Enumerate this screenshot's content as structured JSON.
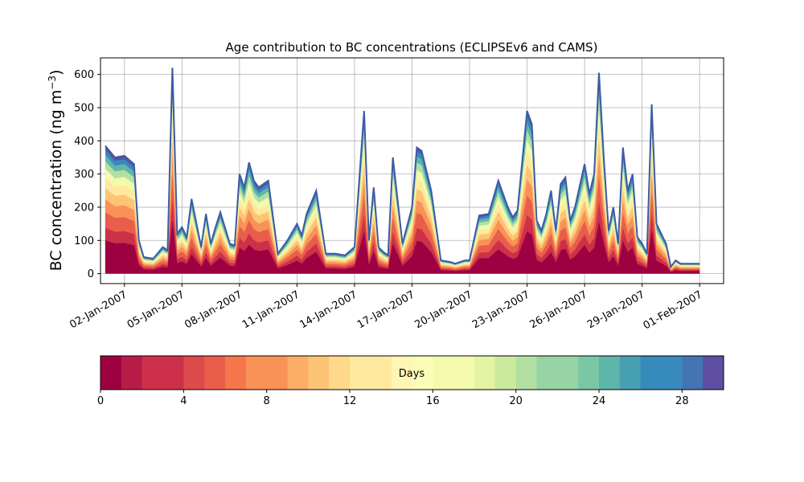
{
  "chart_data": [
    {
      "type": "area",
      "title": "Age contribution to BC concentrations (ECLIPSEv6 and CAMS)",
      "ylabel": "BC concentration (ng m",
      "ylabel_sup": "−3",
      "ylabel_close": ")",
      "ylim": [
        -30,
        650
      ],
      "yticks": [
        0,
        100,
        200,
        300,
        400,
        500,
        600
      ],
      "xlim": [
        "2006-12-31T18:00",
        "2007-02-02T06:00"
      ],
      "x_tick_labels": [
        "02-Jan-2007",
        "05-Jan-2007",
        "08-Jan-2007",
        "11-Jan-2007",
        "14-Jan-2007",
        "17-Jan-2007",
        "20-Jan-2007",
        "23-Jan-2007",
        "26-Jan-2007",
        "29-Jan-2007",
        "01-Feb-2007"
      ],
      "x_tick_dates": [
        "2007-01-02",
        "2007-01-05",
        "2007-01-08",
        "2007-01-11",
        "2007-01-14",
        "2007-01-17",
        "2007-01-20",
        "2007-01-23",
        "2007-01-26",
        "2007-01-29",
        "2007-02-01"
      ],
      "grid": true,
      "stacking": "cumulative by age, 1-day bins, youngest at bottom",
      "total_series": {
        "x": [
          "2007-01-01",
          "2007-01-01T12:00",
          "2007-01-02",
          "2007-01-02T12:00",
          "2007-01-02T18:00",
          "2007-01-03",
          "2007-01-03T12:00",
          "2007-01-04",
          "2007-01-04T06:00",
          "2007-01-04T12:00",
          "2007-01-04T18:00",
          "2007-01-05",
          "2007-01-05T06:00",
          "2007-01-05T12:00",
          "2007-01-06",
          "2007-01-06T06:00",
          "2007-01-06T12:00",
          "2007-01-06T18:00",
          "2007-01-07",
          "2007-01-07T12:00",
          "2007-01-07T18:00",
          "2007-01-08",
          "2007-01-08T06:00",
          "2007-01-08T12:00",
          "2007-01-08T18:00",
          "2007-01-09",
          "2007-01-09T12:00",
          "2007-01-10",
          "2007-01-10T12:00",
          "2007-01-11",
          "2007-01-11T06:00",
          "2007-01-11T12:00",
          "2007-01-12",
          "2007-01-12T12:00",
          "2007-01-12T18:00",
          "2007-01-13",
          "2007-01-13T12:00",
          "2007-01-14",
          "2007-01-14T12:00",
          "2007-01-14T18:00",
          "2007-01-15",
          "2007-01-15T06:00",
          "2007-01-15T12:00",
          "2007-01-15T18:00",
          "2007-01-16",
          "2007-01-16T12:00",
          "2007-01-17",
          "2007-01-17T06:00",
          "2007-01-17T12:00",
          "2007-01-18",
          "2007-01-18T12:00",
          "2007-01-19",
          "2007-01-19T06:00",
          "2007-01-19T12:00",
          "2007-01-19T18:00",
          "2007-01-20",
          "2007-01-20T12:00",
          "2007-01-21",
          "2007-01-21T12:00",
          "2007-01-22",
          "2007-01-22T06:00",
          "2007-01-22T12:00",
          "2007-01-23",
          "2007-01-23T06:00",
          "2007-01-23T12:00",
          "2007-01-23T18:00",
          "2007-01-24",
          "2007-01-24T06:00",
          "2007-01-24T12:00",
          "2007-01-24T18:00",
          "2007-01-25",
          "2007-01-25T06:00",
          "2007-01-25T12:00",
          "2007-01-26",
          "2007-01-26T06:00",
          "2007-01-26T12:00",
          "2007-01-26T18:00",
          "2007-01-27",
          "2007-01-27T06:00",
          "2007-01-27T12:00",
          "2007-01-27T18:00",
          "2007-01-28",
          "2007-01-28T06:00",
          "2007-01-28T12:00",
          "2007-01-28T18:00",
          "2007-01-29",
          "2007-01-29T06:00",
          "2007-01-29T12:00",
          "2007-01-29T18:00",
          "2007-01-30",
          "2007-01-30T06:00",
          "2007-01-30T12:00",
          "2007-01-30T18:00",
          "2007-01-31",
          "2007-01-31T12:00",
          "2007-02-01"
        ],
        "y": [
          385,
          350,
          355,
          330,
          100,
          50,
          45,
          80,
          70,
          620,
          120,
          140,
          110,
          225,
          80,
          180,
          90,
          140,
          185,
          90,
          85,
          300,
          260,
          335,
          280,
          260,
          280,
          60,
          100,
          150,
          115,
          180,
          250,
          60,
          60,
          60,
          55,
          80,
          490,
          100,
          260,
          80,
          65,
          55,
          350,
          90,
          200,
          380,
          370,
          250,
          40,
          35,
          30,
          35,
          40,
          40,
          175,
          180,
          280,
          200,
          170,
          190,
          490,
          450,
          160,
          130,
          180,
          250,
          130,
          270,
          290,
          160,
          200,
          330,
          240,
          300,
          605,
          350,
          130,
          200,
          90,
          380,
          250,
          300,
          110,
          90,
          60,
          510,
          150,
          120,
          90,
          20,
          40,
          30,
          30,
          30
        ]
      },
      "colorbar": {
        "label": "Days",
        "range": [
          0,
          30
        ],
        "ticks": [
          0,
          4,
          8,
          12,
          16,
          20,
          24,
          28
        ],
        "bins": 30,
        "colormap": [
          "#9e0142",
          "#b71c48",
          "#cd3149",
          "#dd4a4c",
          "#e95e4b",
          "#f4764a",
          "#f99257",
          "#fcad66",
          "#fdc476",
          "#fed98b",
          "#fee99f",
          "#fff5b4",
          "#fbfcb8",
          "#f3faae",
          "#e2f4a1",
          "#cbea9d",
          "#b2e0a2",
          "#97d4a4",
          "#7ac7a5",
          "#5eb5aa",
          "#46a0b2",
          "#368abc",
          "#4574b3",
          "#5e4fa2"
        ]
      }
    }
  ]
}
